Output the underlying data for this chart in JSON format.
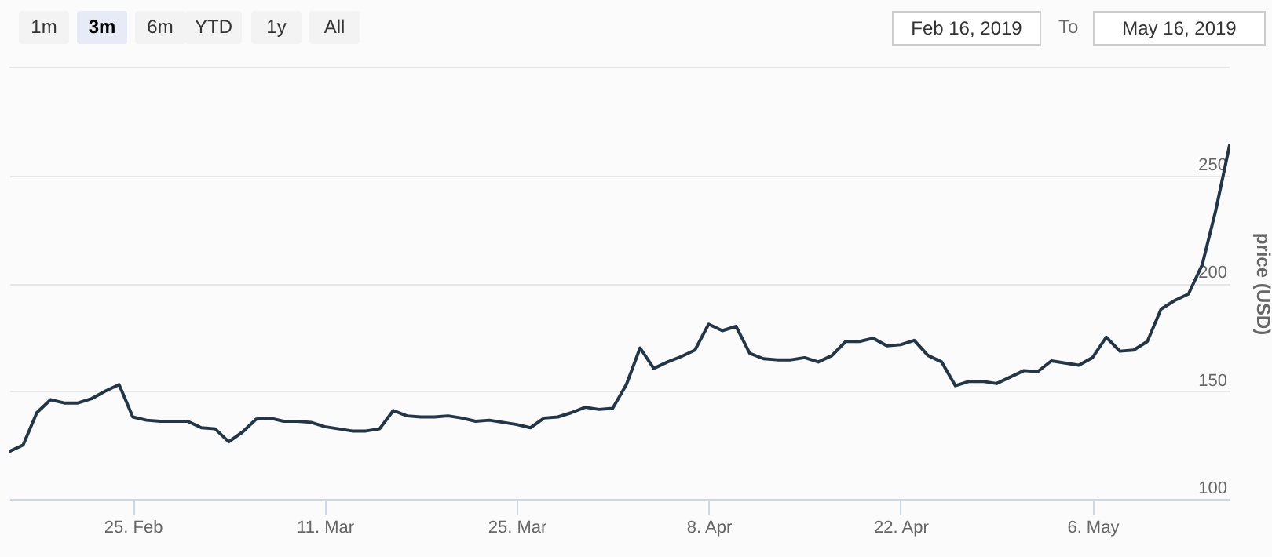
{
  "chart_data": {
    "type": "line",
    "ylabel": "price (USD)",
    "annotations": [
      "1m",
      "3m",
      "6m",
      "YTD",
      "1y",
      "All",
      "Feb 16, 2019",
      "To",
      "May 16, 2019"
    ],
    "x": [
      "2019-02-16",
      "2019-02-17",
      "2019-02-18",
      "2019-02-19",
      "2019-02-20",
      "2019-02-21",
      "2019-02-22",
      "2019-02-23",
      "2019-02-24",
      "2019-02-25",
      "2019-02-26",
      "2019-02-27",
      "2019-02-28",
      "2019-03-01",
      "2019-03-02",
      "2019-03-03",
      "2019-03-04",
      "2019-03-05",
      "2019-03-06",
      "2019-03-07",
      "2019-03-08",
      "2019-03-09",
      "2019-03-10",
      "2019-03-11",
      "2019-03-12",
      "2019-03-13",
      "2019-03-14",
      "2019-03-15",
      "2019-03-16",
      "2019-03-17",
      "2019-03-18",
      "2019-03-19",
      "2019-03-20",
      "2019-03-21",
      "2019-03-22",
      "2019-03-23",
      "2019-03-24",
      "2019-03-25",
      "2019-03-26",
      "2019-03-27",
      "2019-03-28",
      "2019-03-29",
      "2019-03-30",
      "2019-03-31",
      "2019-04-01",
      "2019-04-02",
      "2019-04-03",
      "2019-04-04",
      "2019-04-05",
      "2019-04-06",
      "2019-04-07",
      "2019-04-08",
      "2019-04-09",
      "2019-04-10",
      "2019-04-11",
      "2019-04-12",
      "2019-04-13",
      "2019-04-14",
      "2019-04-15",
      "2019-04-16",
      "2019-04-17",
      "2019-04-18",
      "2019-04-19",
      "2019-04-20",
      "2019-04-21",
      "2019-04-22",
      "2019-04-23",
      "2019-04-24",
      "2019-04-25",
      "2019-04-26",
      "2019-04-27",
      "2019-04-28",
      "2019-04-29",
      "2019-04-30",
      "2019-05-01",
      "2019-05-02",
      "2019-05-03",
      "2019-05-04",
      "2019-05-05",
      "2019-05-06",
      "2019-05-07",
      "2019-05-08",
      "2019-05-09",
      "2019-05-10",
      "2019-05-11",
      "2019-05-12",
      "2019-05-13",
      "2019-05-14",
      "2019-05-15",
      "2019-05-16"
    ],
    "series": [
      {
        "color": "#233648",
        "values": [
          122,
          125,
          140,
          146,
          144.5,
          144.5,
          146.5,
          150,
          153,
          138,
          136.5,
          136,
          136,
          136,
          133,
          132.5,
          126.5,
          131,
          137,
          137.5,
          136,
          136,
          135.5,
          133.5,
          132.5,
          131.5,
          131.5,
          132.5,
          141,
          138.5,
          138,
          138,
          138.5,
          137.5,
          136,
          136.5,
          135.5,
          134.5,
          133,
          137.5,
          138,
          140,
          142.5,
          141.5,
          142,
          153,
          170,
          160.5,
          163.5,
          166,
          169,
          181,
          178,
          180,
          167.5,
          165,
          164.5,
          164.5,
          165.5,
          163.5,
          166.5,
          173,
          173,
          174.5,
          171,
          171.5,
          173.5,
          166.5,
          163.5,
          152.5,
          154.5,
          154.5,
          153.5,
          156.5,
          159.5,
          159,
          164,
          163,
          162,
          165.5,
          175,
          168.5,
          169,
          173,
          188,
          192,
          195,
          208.5,
          234,
          264
        ]
      }
    ],
    "xlim": [
      "2019-02-16",
      "2019-05-16"
    ],
    "xticks": [
      {
        "value": "2019-02-25",
        "label": "25. Feb"
      },
      {
        "value": "2019-03-11",
        "label": "11. Mar"
      },
      {
        "value": "2019-03-25",
        "label": "25. Mar"
      },
      {
        "value": "2019-04-08",
        "label": "8. Apr"
      },
      {
        "value": "2019-04-22",
        "label": "22. Apr"
      },
      {
        "value": "2019-05-06",
        "label": "6. May"
      }
    ],
    "ylim": [
      100,
      300
    ],
    "yticks": [
      100,
      150,
      200,
      250
    ],
    "grid": "y",
    "marker": "none",
    "line_style": "solid",
    "legend": false
  }
}
